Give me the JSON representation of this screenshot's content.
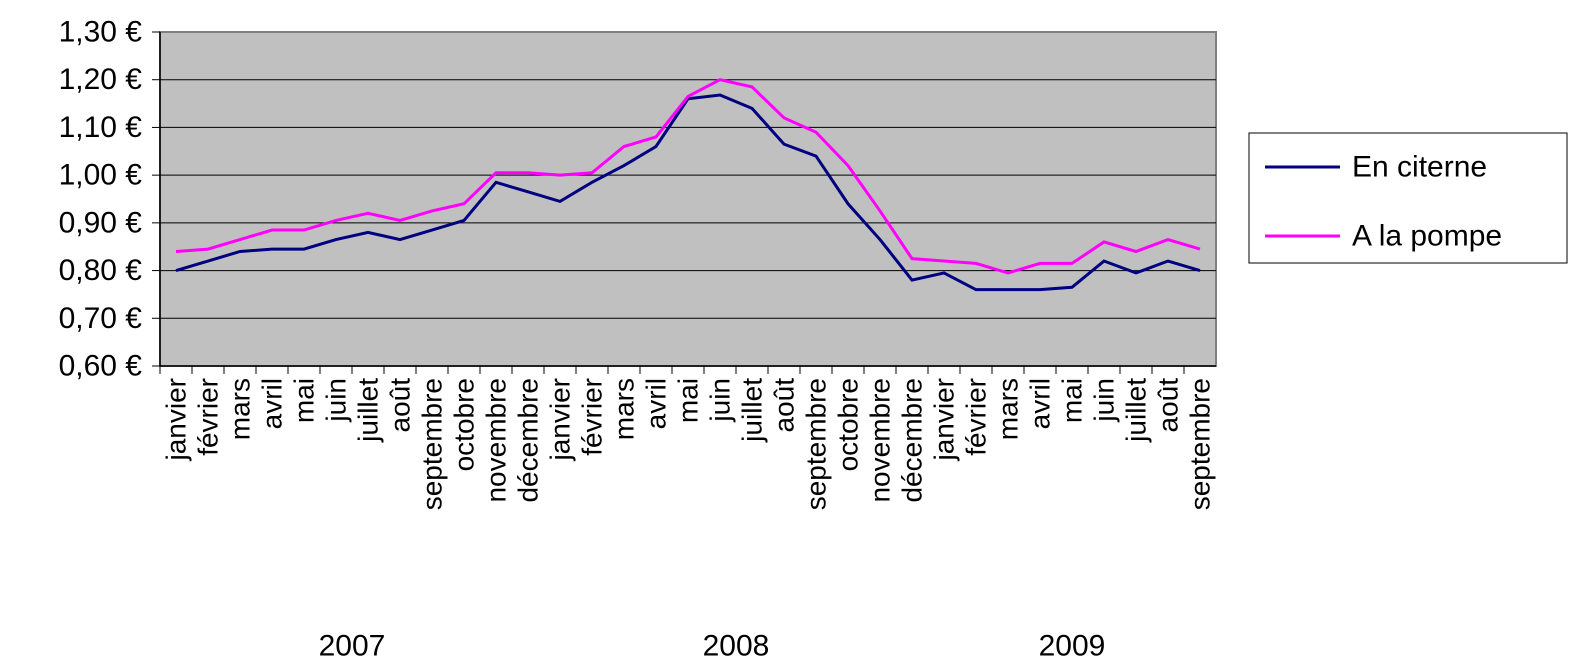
{
  "chart_data": {
    "type": "line",
    "categories": [
      "janvier",
      "février",
      "mars",
      "avril",
      "mai",
      "juin",
      "juillet",
      "août",
      "septembre",
      "octobre",
      "novembre",
      "décembre",
      "janvier",
      "février",
      "mars",
      "avril",
      "mai",
      "juin",
      "juillet",
      "août",
      "septembre",
      "octobre",
      "novembre",
      "décembre",
      "janvier",
      "février",
      "mars",
      "avril",
      "mai",
      "juin",
      "juillet",
      "août",
      "septembre"
    ],
    "year_groups": [
      "2007",
      "2008",
      "2009"
    ],
    "series": [
      {
        "name": "En citerne",
        "color": "#000080",
        "values": [
          0.8,
          0.82,
          0.84,
          0.845,
          0.845,
          0.865,
          0.88,
          0.865,
          0.885,
          0.905,
          0.985,
          0.965,
          0.945,
          0.985,
          1.02,
          1.06,
          1.16,
          1.168,
          1.14,
          1.065,
          1.04,
          0.94,
          0.865,
          0.78,
          0.795,
          0.76,
          0.76,
          0.76,
          0.765,
          0.82,
          0.795,
          0.82,
          0.8
        ]
      },
      {
        "name": "A la pompe",
        "color": "#ff00ff",
        "values": [
          0.84,
          0.845,
          0.865,
          0.885,
          0.885,
          0.905,
          0.92,
          0.905,
          0.925,
          0.94,
          1.005,
          1.005,
          1.0,
          1.005,
          1.06,
          1.08,
          1.165,
          1.2,
          1.185,
          1.12,
          1.09,
          1.02,
          0.925,
          0.825,
          0.82,
          0.815,
          0.795,
          0.815,
          0.815,
          0.86,
          0.84,
          0.865,
          0.845
        ]
      }
    ],
    "ylim": [
      0.6,
      1.3
    ],
    "yticks": [
      {
        "value": 0.6,
        "label": "0,60 €"
      },
      {
        "value": 0.7,
        "label": "0,70 €"
      },
      {
        "value": 0.8,
        "label": "0,80 €"
      },
      {
        "value": 0.9,
        "label": "0,90 €"
      },
      {
        "value": 1.0,
        "label": "1,00 €"
      },
      {
        "value": 1.1,
        "label": "1,10 €"
      },
      {
        "value": 1.2,
        "label": "1,20 €"
      },
      {
        "value": 1.3,
        "label": "1,30 €"
      }
    ],
    "grid": true,
    "legend": "right"
  }
}
